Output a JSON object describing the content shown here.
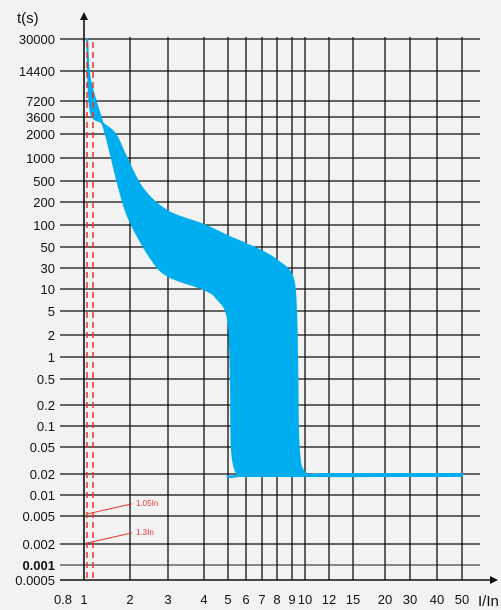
{
  "chart_data": {
    "type": "area",
    "title": "",
    "xlabel": "I/In",
    "ylabel": "t(s)",
    "x_ticks": [
      "0.8",
      "1",
      "2",
      "3",
      "4",
      "5",
      "6",
      "7",
      "8",
      "9",
      "10",
      "12",
      "15",
      "20",
      "30",
      "40",
      "50"
    ],
    "y_ticks": [
      "30000",
      "14400",
      "7200",
      "3600",
      "2000",
      "1000",
      "500",
      "200",
      "100",
      "50",
      "30",
      "10",
      "5",
      "2",
      "1",
      "0.5",
      "0.2",
      "0.1",
      "0.05",
      "0.02",
      "0.01",
      "0.005",
      "0.002",
      "0.001",
      "0.0005"
    ],
    "bold_y_tick": "0.001",
    "band": {
      "color": "#00aeef",
      "upper_boundary": [
        {
          "x": 1.05,
          "y": 30000
        },
        {
          "x": 1.1,
          "y": 5000
        },
        {
          "x": 1.3,
          "y": 3000
        },
        {
          "x": 1.6,
          "y": 2000
        },
        {
          "x": 1.9,
          "y": 1000
        },
        {
          "x": 2.3,
          "y": 350
        },
        {
          "x": 3.0,
          "y": 150
        },
        {
          "x": 4.0,
          "y": 100
        },
        {
          "x": 5.0,
          "y": 70
        },
        {
          "x": 6.0,
          "y": 55
        },
        {
          "x": 7.0,
          "y": 45
        },
        {
          "x": 8.0,
          "y": 36
        },
        {
          "x": 9.0,
          "y": 20
        },
        {
          "x": 9.3,
          "y": 5
        },
        {
          "x": 9.4,
          "y": 0.5
        },
        {
          "x": 9.5,
          "y": 0.05
        },
        {
          "x": 10.0,
          "y": 0.021
        },
        {
          "x": 12.0,
          "y": 0.02
        },
        {
          "x": 50.0,
          "y": 0.02
        }
      ],
      "lower_boundary": [
        {
          "x": 1.05,
          "y": 30000
        },
        {
          "x": 1.1,
          "y": 12000
        },
        {
          "x": 1.4,
          "y": 2000
        },
        {
          "x": 1.7,
          "y": 400
        },
        {
          "x": 2.0,
          "y": 120
        },
        {
          "x": 2.5,
          "y": 40
        },
        {
          "x": 3.0,
          "y": 22
        },
        {
          "x": 4.0,
          "y": 11
        },
        {
          "x": 4.5,
          "y": 8
        },
        {
          "x": 5.0,
          "y": 4
        },
        {
          "x": 5.15,
          "y": 0.5
        },
        {
          "x": 5.2,
          "y": 0.05
        },
        {
          "x": 5.5,
          "y": 0.021
        },
        {
          "x": 6.0,
          "y": 0.02
        },
        {
          "x": 50.0,
          "y": 0.02
        }
      ]
    },
    "reference_lines": [
      {
        "x": 1.05,
        "label": "1.05In",
        "label_y": 0.007
      },
      {
        "x": 1.3,
        "label": "1.3In",
        "label_y": 0.0027
      }
    ],
    "ylim": [
      0.0005,
      30000
    ],
    "xlim": [
      0.8,
      50
    ],
    "x_scale": "log",
    "y_scale": "categorical-log",
    "grid": true
  }
}
